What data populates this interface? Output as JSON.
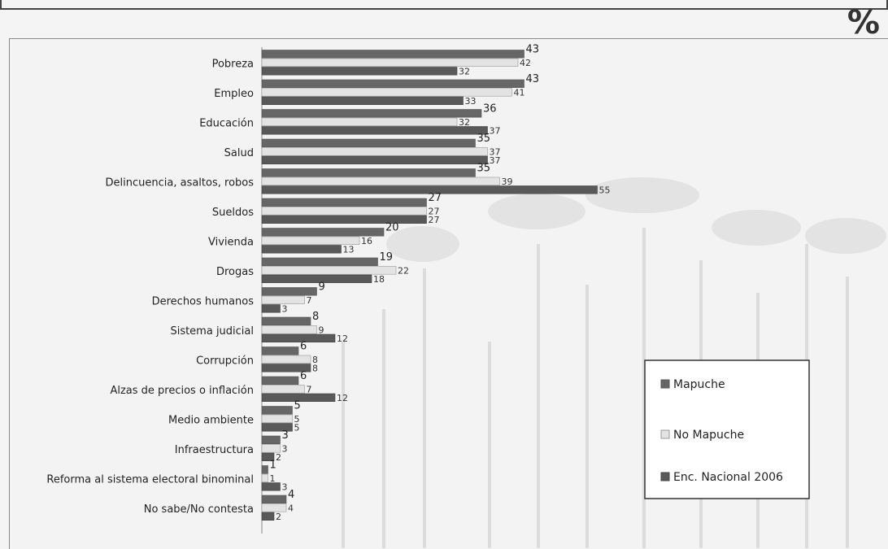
{
  "unit_label": "%",
  "colors": {
    "mapuche": "#666666",
    "no_mapuche": "#e3e3e3",
    "nacional": "#595959",
    "axis": "#888888",
    "watermark": "#dcdcdc"
  },
  "chart_data": {
    "type": "bar",
    "orientation": "horizontal",
    "categories": [
      "Pobreza",
      "Empleo",
      "Educación",
      "Salud",
      "Delincuencia, asaltos, robos",
      "Sueldos",
      "Vivienda",
      "Drogas",
      "Derechos humanos",
      "Sistema judicial",
      "Corrupción",
      "Alzas de precios o inflación",
      "Medio ambiente",
      "Infraestructura",
      "Reforma al sistema electoral binominal",
      "No sabe/No contesta"
    ],
    "series": [
      {
        "name": "Mapuche",
        "values": [
          43,
          43,
          36,
          35,
          35,
          27,
          20,
          19,
          9,
          8,
          6,
          6,
          5,
          3,
          1,
          4
        ]
      },
      {
        "name": "No Mapuche",
        "values": [
          42,
          41,
          32,
          37,
          39,
          27,
          16,
          22,
          7,
          9,
          8,
          7,
          5,
          3,
          1,
          4
        ]
      },
      {
        "name": "Enc. Nacional 2006",
        "values": [
          32,
          33,
          37,
          37,
          55,
          27,
          13,
          18,
          3,
          12,
          8,
          12,
          5,
          2,
          3,
          2
        ]
      }
    ],
    "xlim": [
      0,
      100
    ],
    "grid": false,
    "legend_position": "bottom-right"
  }
}
